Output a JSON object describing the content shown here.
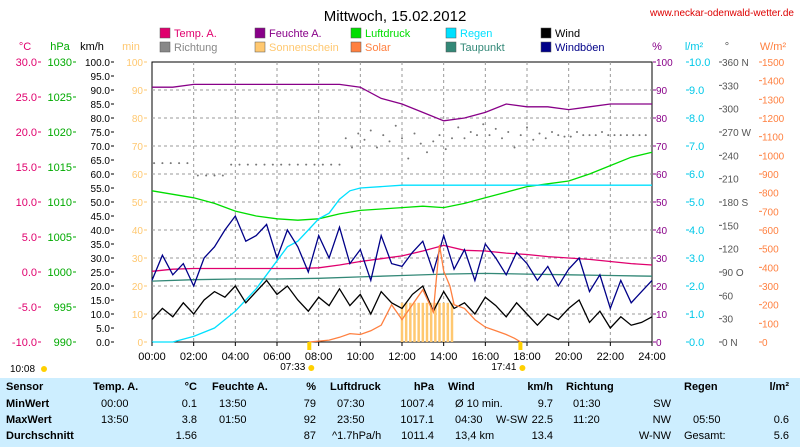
{
  "title": "Mittwoch, 15.02.2012",
  "website": "www.neckar-odenwald-wetter.de",
  "chart_data": {
    "type": "line",
    "x_ticks": [
      "00:00",
      "02:00",
      "04:00",
      "06:00",
      "08:00",
      "10:00",
      "12:00",
      "14:00",
      "16:00",
      "18:00",
      "20:00",
      "22:00",
      "24:00"
    ],
    "legend": [
      {
        "label": "Temp. A.",
        "color": "#e0006e"
      },
      {
        "label": "Richtung",
        "color": "#888888"
      },
      {
        "label": "Feuchte A.",
        "color": "#880088"
      },
      {
        "label": "Sonnenschein",
        "color": "#ffc870"
      },
      {
        "label": "Luftdruck",
        "color": "#00dd00"
      },
      {
        "label": "Solar",
        "color": "#ff8040"
      },
      {
        "label": "Regen",
        "color": "#00e0ff"
      },
      {
        "label": "Taupunkt",
        "color": "#338877"
      },
      {
        "label": "Wind",
        "color": "#000000"
      },
      {
        "label": "Windböen",
        "color": "#000088"
      }
    ],
    "axes": {
      "temp": {
        "unit": "°C",
        "color": "#e0006e",
        "ticks": [
          "30.0",
          "25.0",
          "20.0",
          "15.0",
          "10.0",
          "5.0",
          "0.0",
          "-5.0",
          "-10.0"
        ],
        "min": -10,
        "max": 30
      },
      "pressure": {
        "unit": "hPa",
        "color": "#00aa00",
        "ticks": [
          "1030",
          "1025",
          "1020",
          "1015",
          "1010",
          "1005",
          "1000",
          "995",
          "990"
        ],
        "min": 990,
        "max": 1030
      },
      "wind": {
        "unit": "km/h",
        "color": "#000000",
        "ticks": [
          "100.0",
          "95.0",
          "90.0",
          "85.0",
          "80.0",
          "75.0",
          "70.0",
          "65.0",
          "60.0",
          "55.0",
          "50.0",
          "45.0",
          "40.0",
          "35.0",
          "30.0",
          "25.0",
          "20.0",
          "15.0",
          "10.0",
          "5.0",
          "0.0"
        ],
        "min": 0,
        "max": 100
      },
      "sun": {
        "unit": "min",
        "color": "#ffc870",
        "ticks": [
          "100",
          "90",
          "80",
          "70",
          "60",
          "50",
          "40",
          "30",
          "20",
          "10",
          "0"
        ],
        "min": 0,
        "max": 100
      },
      "humidity": {
        "unit": "%",
        "color": "#880088",
        "ticks": [
          "100",
          "90",
          "80",
          "70",
          "60",
          "50",
          "40",
          "30",
          "20",
          "10",
          "0"
        ],
        "min": 0,
        "max": 100
      },
      "rain": {
        "unit": "l/m²",
        "color": "#00c8e8",
        "ticks": [
          "10.0",
          "9.0",
          "8.0",
          "7.0",
          "6.0",
          "5.0",
          "4.0",
          "3.0",
          "2.0",
          "1.0",
          "0.0"
        ],
        "min": 0,
        "max": 10
      },
      "direction": {
        "unit": "°",
        "color": "#555555",
        "ticks": [
          "360 N",
          "330",
          "300",
          "270 W",
          "240",
          "210",
          "180 S",
          "150",
          "120",
          "90 O",
          "60",
          "30",
          "0 N"
        ],
        "min": 0,
        "max": 360
      },
      "solar": {
        "unit": "W/m²",
        "color": "#ff8040",
        "ticks": [
          "1500",
          "1400",
          "1300",
          "1200",
          "1100",
          "1000",
          "900",
          "800",
          "700",
          "600",
          "500",
          "400",
          "300",
          "200",
          "100",
          "0"
        ],
        "min": 0,
        "max": 1500
      }
    },
    "sunrise": "07:33",
    "sunset": "17:41",
    "chart_start": "10:08",
    "series": [
      {
        "name": "Feuchte A.",
        "axis": "humidity",
        "color": "#880088",
        "x": [
          0,
          1,
          2,
          3,
          4,
          5,
          6,
          7,
          8,
          9,
          10,
          11,
          12,
          13,
          14,
          15,
          16,
          17,
          18,
          19,
          20,
          21,
          22,
          23,
          24
        ],
        "values": [
          91,
          91,
          92,
          92,
          92,
          92,
          92,
          92,
          92,
          92,
          91,
          87,
          85,
          82,
          79,
          80,
          82,
          85,
          84,
          84,
          83,
          84,
          85,
          85,
          85
        ]
      },
      {
        "name": "Luftdruck",
        "axis": "pressure",
        "color": "#00dd00",
        "x": [
          0,
          1,
          2,
          3,
          4,
          5,
          6,
          7,
          8,
          9,
          10,
          11,
          12,
          13,
          14,
          15,
          16,
          17,
          18,
          19,
          20,
          21,
          22,
          23,
          24
        ],
        "values": [
          1011.6,
          1011.1,
          1010.6,
          1009.8,
          1008.7,
          1008.0,
          1007.6,
          1007.4,
          1007.6,
          1008.3,
          1008.8,
          1009.0,
          1009.2,
          1009.4,
          1009.2,
          1009.8,
          1010.6,
          1011.4,
          1012.2,
          1012.6,
          1013.0,
          1014.0,
          1015.2,
          1016.4,
          1017.1
        ]
      },
      {
        "name": "Regen",
        "axis": "rain",
        "color": "#00e0ff",
        "x": [
          0,
          1,
          2,
          3,
          3.5,
          4,
          4.5,
          5,
          5.5,
          6,
          6.5,
          7,
          7.5,
          8,
          8.5,
          9,
          9.5,
          10,
          12,
          18,
          24
        ],
        "values": [
          0,
          0,
          0.2,
          0.5,
          0.8,
          1.1,
          1.5,
          1.9,
          2.4,
          2.9,
          3.4,
          3.6,
          4.0,
          4.4,
          4.6,
          5.1,
          5.4,
          5.5,
          5.6,
          5.6,
          5.6
        ]
      },
      {
        "name": "Temp. A.",
        "axis": "temp",
        "color": "#e0006e",
        "x": [
          0,
          1,
          2,
          3,
          4,
          5,
          6,
          7,
          8,
          9,
          10,
          11,
          12,
          13,
          14,
          15,
          16,
          17,
          18,
          19,
          20,
          21,
          22,
          23,
          24
        ],
        "values": [
          0.1,
          0.4,
          0.5,
          0.5,
          0.5,
          0.5,
          0.5,
          0.5,
          0.6,
          1.0,
          1.5,
          1.9,
          2.3,
          3.0,
          3.8,
          3.1,
          3.0,
          2.7,
          2.5,
          2.2,
          2.0,
          1.8,
          1.5,
          1.2,
          1.0
        ]
      },
      {
        "name": "Taupunkt",
        "axis": "temp",
        "color": "#338877",
        "x": [
          0,
          2,
          4,
          6,
          8,
          10,
          12,
          14,
          16,
          18,
          20,
          22,
          24
        ],
        "values": [
          -1.3,
          -1.1,
          -1.0,
          -1.0,
          -0.9,
          -0.7,
          -0.5,
          -0.3,
          -0.2,
          -0.3,
          -0.4,
          -0.5,
          -0.6
        ]
      },
      {
        "name": "Windböen",
        "axis": "wind",
        "color": "#000088",
        "x": [
          0,
          0.5,
          1,
          1.5,
          2,
          2.5,
          3,
          3.5,
          4,
          4.5,
          5,
          5.5,
          6,
          6.5,
          7,
          7.5,
          8,
          8.5,
          9,
          9.5,
          10,
          10.5,
          11,
          11.5,
          12,
          12.5,
          13,
          13.5,
          14,
          14.5,
          15,
          15.5,
          16,
          16.5,
          17,
          17.5,
          18,
          18.5,
          19,
          19.5,
          20,
          20.5,
          21,
          21.5,
          22,
          22.5,
          23,
          23.5,
          24
        ],
        "values": [
          22,
          31,
          24,
          28,
          20,
          30,
          34,
          40,
          45,
          36,
          38,
          42,
          30,
          40,
          34,
          25,
          38,
          30,
          41,
          28,
          33,
          22,
          38,
          28,
          27,
          32,
          36,
          25,
          38,
          26,
          33,
          22,
          35,
          30,
          24,
          32,
          28,
          22,
          27,
          20,
          26,
          30,
          18,
          24,
          12,
          22,
          14,
          18,
          22
        ]
      },
      {
        "name": "Wind",
        "axis": "wind",
        "color": "#000000",
        "x": [
          0,
          0.5,
          1,
          1.5,
          2,
          2.5,
          3,
          3.5,
          4,
          4.5,
          5,
          5.5,
          6,
          6.5,
          7,
          7.5,
          8,
          8.5,
          9,
          9.5,
          10,
          10.5,
          11,
          11.5,
          12,
          12.5,
          13,
          13.5,
          14,
          14.5,
          15,
          15.5,
          16,
          16.5,
          17,
          17.5,
          18,
          18.5,
          19,
          19.5,
          20,
          20.5,
          21,
          21.5,
          22,
          22.5,
          23,
          23.5,
          24
        ],
        "values": [
          8,
          12,
          9,
          14,
          10,
          15,
          18,
          16,
          20,
          14,
          18,
          22,
          17,
          20,
          15,
          11,
          16,
          13,
          19,
          13,
          17,
          10,
          18,
          14,
          12,
          17,
          20,
          11,
          18,
          12,
          14,
          10,
          16,
          13,
          9,
          14,
          10,
          6,
          10,
          8,
          12,
          15,
          7,
          11,
          5,
          9,
          6,
          7,
          9
        ]
      },
      {
        "name": "Solar",
        "axis": "solar",
        "color": "#ff8040",
        "x": [
          7.55,
          8,
          8.5,
          9,
          9.5,
          10,
          10.5,
          11,
          11.5,
          12,
          12.5,
          13,
          13.5,
          13.8,
          14,
          14.3,
          14.5,
          15,
          15.5,
          16,
          16.5,
          17,
          17.4,
          17.7
        ],
        "values": [
          0,
          5,
          10,
          25,
          45,
          40,
          60,
          90,
          200,
          120,
          200,
          280,
          160,
          520,
          380,
          300,
          200,
          180,
          120,
          80,
          60,
          40,
          20,
          0
        ]
      }
    ],
    "direction_points": [
      {
        "x": 0.1,
        "y": 230
      },
      {
        "x": 0.5,
        "y": 230
      },
      {
        "x": 0.9,
        "y": 230
      },
      {
        "x": 1.3,
        "y": 230
      },
      {
        "x": 1.7,
        "y": 230
      },
      {
        "x": 2.2,
        "y": 214
      },
      {
        "x": 2.6,
        "y": 214
      },
      {
        "x": 3.0,
        "y": 214
      },
      {
        "x": 3.4,
        "y": 214
      },
      {
        "x": 3.8,
        "y": 228
      },
      {
        "x": 4.2,
        "y": 228
      },
      {
        "x": 4.6,
        "y": 228
      },
      {
        "x": 5.0,
        "y": 228
      },
      {
        "x": 5.4,
        "y": 228
      },
      {
        "x": 5.8,
        "y": 228
      },
      {
        "x": 6.2,
        "y": 228
      },
      {
        "x": 6.6,
        "y": 228
      },
      {
        "x": 7.0,
        "y": 228
      },
      {
        "x": 7.4,
        "y": 228
      },
      {
        "x": 7.8,
        "y": 228
      },
      {
        "x": 8.2,
        "y": 228
      },
      {
        "x": 8.6,
        "y": 228
      },
      {
        "x": 9.0,
        "y": 228
      },
      {
        "x": 9.3,
        "y": 262
      },
      {
        "x": 9.6,
        "y": 250
      },
      {
        "x": 9.9,
        "y": 268
      },
      {
        "x": 10.2,
        "y": 260
      },
      {
        "x": 10.5,
        "y": 272
      },
      {
        "x": 10.8,
        "y": 250
      },
      {
        "x": 11.1,
        "y": 266
      },
      {
        "x": 11.4,
        "y": 258
      },
      {
        "x": 11.7,
        "y": 278
      },
      {
        "x": 12.0,
        "y": 262
      },
      {
        "x": 12.3,
        "y": 236
      },
      {
        "x": 12.6,
        "y": 268
      },
      {
        "x": 12.9,
        "y": 255
      },
      {
        "x": 13.2,
        "y": 244
      },
      {
        "x": 13.5,
        "y": 258
      },
      {
        "x": 13.8,
        "y": 266
      },
      {
        "x": 14.1,
        "y": 248
      },
      {
        "x": 14.4,
        "y": 262
      },
      {
        "x": 14.7,
        "y": 276
      },
      {
        "x": 15.0,
        "y": 262
      },
      {
        "x": 15.3,
        "y": 270
      },
      {
        "x": 15.6,
        "y": 266
      },
      {
        "x": 15.9,
        "y": 280
      },
      {
        "x": 16.2,
        "y": 266
      },
      {
        "x": 16.5,
        "y": 274
      },
      {
        "x": 16.8,
        "y": 262
      },
      {
        "x": 17.1,
        "y": 270
      },
      {
        "x": 17.4,
        "y": 250
      },
      {
        "x": 17.7,
        "y": 266
      },
      {
        "x": 18.0,
        "y": 276
      },
      {
        "x": 18.3,
        "y": 260
      },
      {
        "x": 18.6,
        "y": 268
      },
      {
        "x": 18.9,
        "y": 262
      },
      {
        "x": 19.2,
        "y": 270
      },
      {
        "x": 19.5,
        "y": 266
      },
      {
        "x": 19.8,
        "y": 264
      },
      {
        "x": 20.1,
        "y": 264
      },
      {
        "x": 20.4,
        "y": 270
      },
      {
        "x": 20.7,
        "y": 266
      },
      {
        "x": 21.0,
        "y": 266
      },
      {
        "x": 21.3,
        "y": 266
      },
      {
        "x": 21.6,
        "y": 270
      },
      {
        "x": 21.9,
        "y": 266
      },
      {
        "x": 22.2,
        "y": 266
      },
      {
        "x": 22.5,
        "y": 266
      },
      {
        "x": 22.8,
        "y": 266
      },
      {
        "x": 23.1,
        "y": 266
      },
      {
        "x": 23.4,
        "y": 266
      },
      {
        "x": 23.7,
        "y": 266
      }
    ],
    "sunshine_bars": [
      12.0,
      12.2,
      12.4,
      12.6,
      12.8,
      13.0,
      13.2,
      13.4,
      13.6,
      13.8,
      14.0,
      14.2,
      14.4
    ]
  },
  "stats": {
    "headers": {
      "sensor": "Sensor",
      "temp": "Temp. A.",
      "temp_unit": "°C",
      "hum": "Feuchte A.",
      "hum_unit": "%",
      "press": "Luftdruck",
      "press_unit": "hPa",
      "wind": "Wind",
      "wind_unit": "km/h",
      "dir": "Richtung",
      "rain": "Regen",
      "rain_unit": "l/m²"
    },
    "min": {
      "label": "MinWert",
      "temp_time": "00:00",
      "temp_val": "0.1",
      "hum_time": "13:50",
      "hum_val": "79",
      "press_time": "07:30",
      "press_val": "1007.4",
      "wind_label": "Ø 10 min.",
      "wind_val": "9.7",
      "dir_time": "01:30",
      "dir_val": "SW"
    },
    "max": {
      "label": "MaxWert",
      "temp_time": "13:50",
      "temp_val": "3.8",
      "hum_time": "01:50",
      "hum_val": "92",
      "press_time": "23:50",
      "press_val": "1017.1",
      "wind_time": "04:30",
      "wind_dir": "W-SW",
      "wind_val": "22.5",
      "dir_time": "11:20",
      "dir_val": "NW",
      "rain_time": "05:50",
      "rain_val": "0.6"
    },
    "avg": {
      "label": "Durchschnitt",
      "temp_val": "1.56",
      "hum_val": "87",
      "press_trend": "^1.7hPa/h",
      "press_val": "1011.4",
      "wind_dist": "13,4 km",
      "wind_val": "13.4",
      "dir_val": "W-NW",
      "rain_label": "Gesamt:",
      "rain_val": "5.6"
    }
  }
}
